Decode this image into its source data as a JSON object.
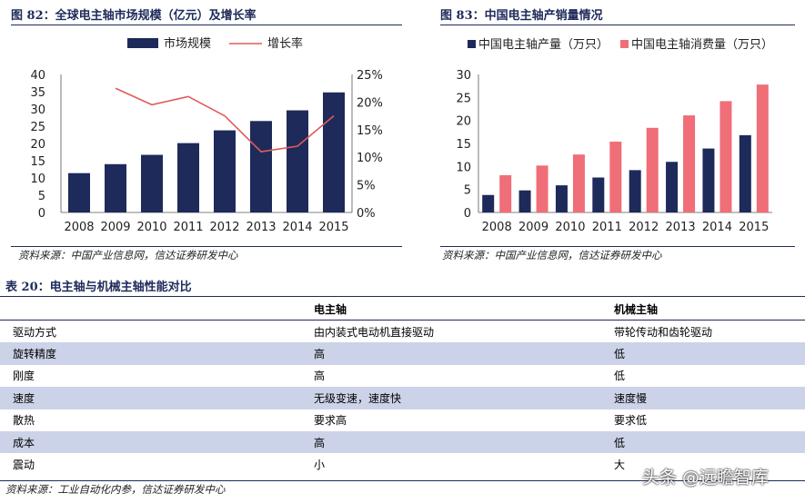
{
  "figure82": {
    "title": "图 82：全球电主轴市场规模（亿元）及增长率",
    "source": "资料来源：中国产业信息网，信达证券研发中心"
  },
  "figure83": {
    "title": "图 83：中国电主轴产销量情况",
    "source": "资料来源：中国产业信息网，信达证券研发中心"
  },
  "table20": {
    "title": "表 20：电主轴与机械主轴性能对比",
    "headers": [
      "",
      "电主轴",
      "机械主轴"
    ],
    "rows": [
      [
        "驱动方式",
        "由内装式电动机直接驱动",
        "带轮传动和齿轮驱动"
      ],
      [
        "旋转精度",
        "高",
        "低"
      ],
      [
        "刚度",
        "高",
        "低"
      ],
      [
        "速度",
        "无级变速，速度快",
        "速度慢"
      ],
      [
        "散热",
        "要求高",
        "要求低"
      ],
      [
        "成本",
        "高",
        "低"
      ],
      [
        "震动",
        "小",
        "大"
      ]
    ],
    "source": "资料来源：工业自动化内参，信达证券研发中心"
  },
  "watermark": "头条 @远瞻智库",
  "colors": {
    "navy": "#1d2a5a",
    "bar": "#1d2a5a",
    "red_line": "#e05a5a",
    "pink_bar": "#ef6e78",
    "row_shade": "#ccd3e8"
  },
  "chart_data": [
    {
      "type": "bar",
      "categories": [
        "2008",
        "2009",
        "2010",
        "2011",
        "2012",
        "2013",
        "2014",
        "2015"
      ],
      "series": [
        {
          "name": "市场规模",
          "kind": "bar",
          "axis": "left",
          "values": [
            11.4,
            14.0,
            16.7,
            20.1,
            23.8,
            26.5,
            29.6,
            34.8
          ]
        },
        {
          "name": "增长率",
          "kind": "line",
          "axis": "right",
          "values": [
            null,
            22.5,
            19.5,
            21.0,
            17.5,
            11.0,
            12.0,
            17.5
          ]
        }
      ],
      "ylim": [
        0,
        40
      ],
      "yticks": [
        "0",
        "5",
        "10",
        "15",
        "20",
        "25",
        "30",
        "35",
        "40"
      ],
      "y2lim": [
        0,
        25
      ],
      "y2ticks": [
        "0%",
        "5%",
        "10%",
        "15%",
        "20%",
        "25%"
      ],
      "legend": "top"
    },
    {
      "type": "bar",
      "categories": [
        "2008",
        "2009",
        "2010",
        "2011",
        "2012",
        "2013",
        "2014",
        "2015"
      ],
      "series": [
        {
          "name": "中国电主轴产量（万只）",
          "values": [
            3.8,
            4.8,
            5.9,
            7.6,
            9.2,
            11.0,
            13.9,
            16.8
          ]
        },
        {
          "name": "中国电主轴消费量（万只）",
          "values": [
            8.1,
            10.2,
            12.6,
            15.4,
            18.4,
            21.1,
            24.2,
            27.8
          ]
        }
      ],
      "ylim": [
        0,
        30
      ],
      "yticks": [
        "0",
        "5",
        "10",
        "15",
        "20",
        "25",
        "30"
      ],
      "legend": "top"
    }
  ]
}
